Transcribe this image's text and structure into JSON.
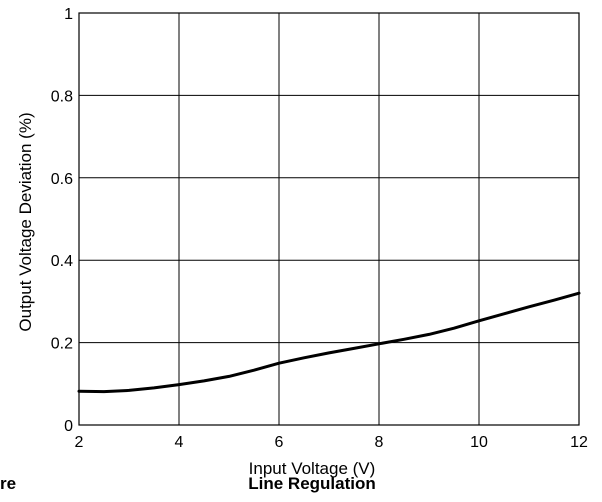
{
  "chart_data": {
    "type": "line",
    "title": "Line Regulation",
    "caption_fragment": "re",
    "xlabel": "Input Voltage (V)",
    "ylabel": "Output Voltage Deviation (%)",
    "xlim": [
      2,
      12
    ],
    "ylim": [
      0,
      1
    ],
    "grid": true,
    "xticks": [
      {
        "value": 2,
        "label": "2"
      },
      {
        "value": 4,
        "label": "4"
      },
      {
        "value": 6,
        "label": "6"
      },
      {
        "value": 8,
        "label": "8"
      },
      {
        "value": 10,
        "label": "10"
      },
      {
        "value": 12,
        "label": "12"
      }
    ],
    "yticks": [
      {
        "value": 0,
        "label": "0"
      },
      {
        "value": 0.2,
        "label": "0.2"
      },
      {
        "value": 0.4,
        "label": "0.4"
      },
      {
        "value": 0.6,
        "label": "0.6"
      },
      {
        "value": 0.8,
        "label": "0.8"
      },
      {
        "value": 1,
        "label": "1"
      }
    ],
    "series": [
      {
        "x": [
          2,
          2.5,
          3,
          3.5,
          4,
          4.5,
          5,
          5.5,
          6,
          6.5,
          7,
          7.5,
          8,
          8.5,
          9,
          9.5,
          10,
          10.5,
          11,
          11.5,
          12
        ],
        "y": [
          0.082,
          0.081,
          0.084,
          0.09,
          0.098,
          0.107,
          0.118,
          0.133,
          0.15,
          0.163,
          0.175,
          0.186,
          0.197,
          0.208,
          0.22,
          0.235,
          0.253,
          0.27,
          0.287,
          0.303,
          0.32
        ]
      }
    ]
  }
}
